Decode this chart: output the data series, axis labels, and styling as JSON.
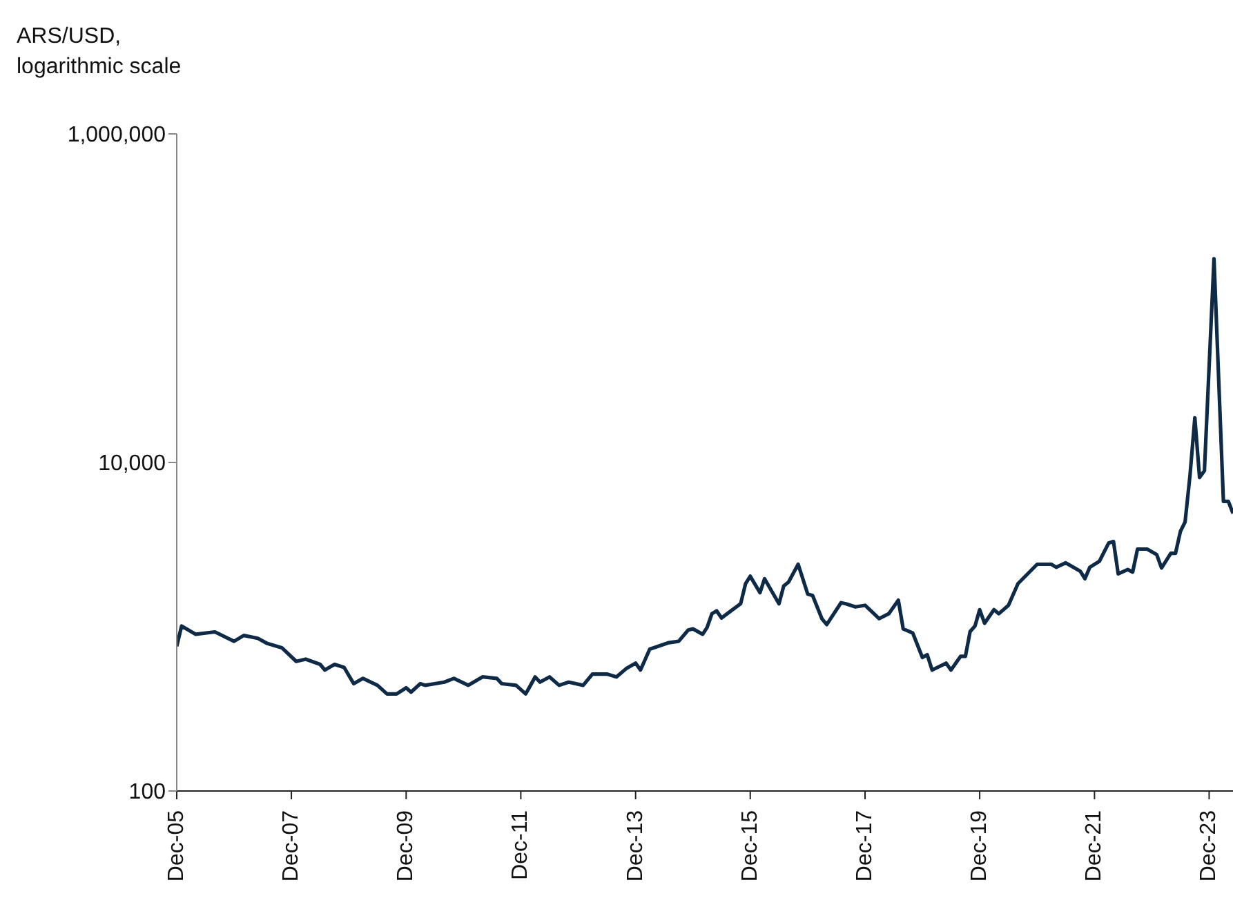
{
  "chart_data": {
    "type": "line",
    "ylabel": "ARS/USD, logarithmic scale",
    "log": "y",
    "color": "#0e2a47",
    "x": [
      "2005-12",
      "2006-01",
      "2006-04",
      "2006-08",
      "2006-12",
      "2007-02",
      "2007-05",
      "2007-07",
      "2007-10",
      "2008-01",
      "2008-03",
      "2008-06",
      "2008-07",
      "2008-09",
      "2008-11",
      "2009-01",
      "2009-03",
      "2009-06",
      "2009-08",
      "2009-10",
      "2009-12",
      "2010-01",
      "2010-03",
      "2010-04",
      "2010-08",
      "2010-10",
      "2011-01",
      "2011-04",
      "2011-07",
      "2011-08",
      "2011-11",
      "2012-01",
      "2012-02",
      "2012-03",
      "2012-04",
      "2012-06",
      "2012-08",
      "2012-10",
      "2013-01",
      "2013-03",
      "2013-06",
      "2013-08",
      "2013-10",
      "2013-12",
      "2014-01",
      "2014-03",
      "2014-07",
      "2014-09",
      "2014-11",
      "2014-12",
      "2015-02",
      "2015-03",
      "2015-04",
      "2015-05",
      "2015-06",
      "2015-08",
      "2015-10",
      "2015-11",
      "2015-12",
      "2016-02",
      "2016-03",
      "2016-06",
      "2016-07",
      "2016-08",
      "2016-10",
      "2016-12",
      "2017-01",
      "2017-03",
      "2017-04",
      "2017-07",
      "2017-08",
      "2017-10",
      "2017-12",
      "2018-03",
      "2018-05",
      "2018-07",
      "2018-08",
      "2018-10",
      "2018-12",
      "2019-01",
      "2019-02",
      "2019-05",
      "2019-06",
      "2019-08",
      "2019-09",
      "2019-10",
      "2019-11",
      "2019-12",
      "2020-01",
      "2020-03",
      "2020-04",
      "2020-06",
      "2020-08",
      "2020-12",
      "2021-03",
      "2021-04",
      "2021-06",
      "2021-09",
      "2021-10",
      "2021-11",
      "2022-01",
      "2022-03",
      "2022-04",
      "2022-05",
      "2022-07",
      "2022-08",
      "2022-09",
      "2022-11",
      "2023-01",
      "2023-02",
      "2023-04",
      "2023-05",
      "2023-06",
      "2023-07",
      "2023-08",
      "2023-09",
      "2023-10",
      "2023-11",
      "2024-01",
      "2024-03",
      "2024-04",
      "2024-05"
    ],
    "values": [
      760,
      1010,
      900,
      930,
      815,
      885,
      850,
      790,
      745,
      615,
      635,
      590,
      545,
      590,
      565,
      450,
      485,
      440,
      390,
      390,
      425,
      400,
      450,
      440,
      460,
      485,
      440,
      495,
      485,
      450,
      440,
      390,
      440,
      495,
      460,
      495,
      440,
      460,
      440,
      515,
      515,
      495,
      555,
      600,
      545,
      730,
      800,
      815,
      955,
      970,
      900,
      990,
      1200,
      1250,
      1130,
      1250,
      1380,
      1830,
      2030,
      1610,
      1960,
      1380,
      1770,
      1870,
      2400,
      1580,
      1550,
      1120,
      1030,
      1400,
      1380,
      1320,
      1350,
      1120,
      1200,
      1450,
      970,
      915,
      650,
      675,
      545,
      600,
      545,
      660,
      660,
      935,
      1010,
      1270,
      1050,
      1270,
      1200,
      1350,
      1830,
      2400,
      2400,
      2300,
      2450,
      2180,
      1960,
      2300,
      2500,
      3230,
      3300,
      2100,
      2230,
      2150,
      2970,
      2970,
      2750,
      2280,
      2800,
      2800,
      3800,
      4350,
      8300,
      18700,
      8100,
      8900,
      174000,
      5800,
      5800,
      4900
    ],
    "xlim": [
      "2005-12",
      "2024-05"
    ],
    "xticks": [
      {
        "value": "2005-12",
        "label": "Dec-05"
      },
      {
        "value": "2007-12",
        "label": "Dec-07"
      },
      {
        "value": "2009-12",
        "label": "Dec-09"
      },
      {
        "value": "2011-12",
        "label": "Dec-11"
      },
      {
        "value": "2013-12",
        "label": "Dec-13"
      },
      {
        "value": "2015-12",
        "label": "Dec-15"
      },
      {
        "value": "2017-12",
        "label": "Dec-17"
      },
      {
        "value": "2019-12",
        "label": "Dec-19"
      },
      {
        "value": "2021-12",
        "label": "Dec-21"
      },
      {
        "value": "2023-12",
        "label": "Dec-23"
      }
    ],
    "ylim": [
      100,
      1000000
    ],
    "yticks": [
      {
        "value": 100,
        "label": "100"
      },
      {
        "value": 10000,
        "label": "10,000"
      },
      {
        "value": 1000000,
        "label": "1,000,000"
      }
    ]
  }
}
